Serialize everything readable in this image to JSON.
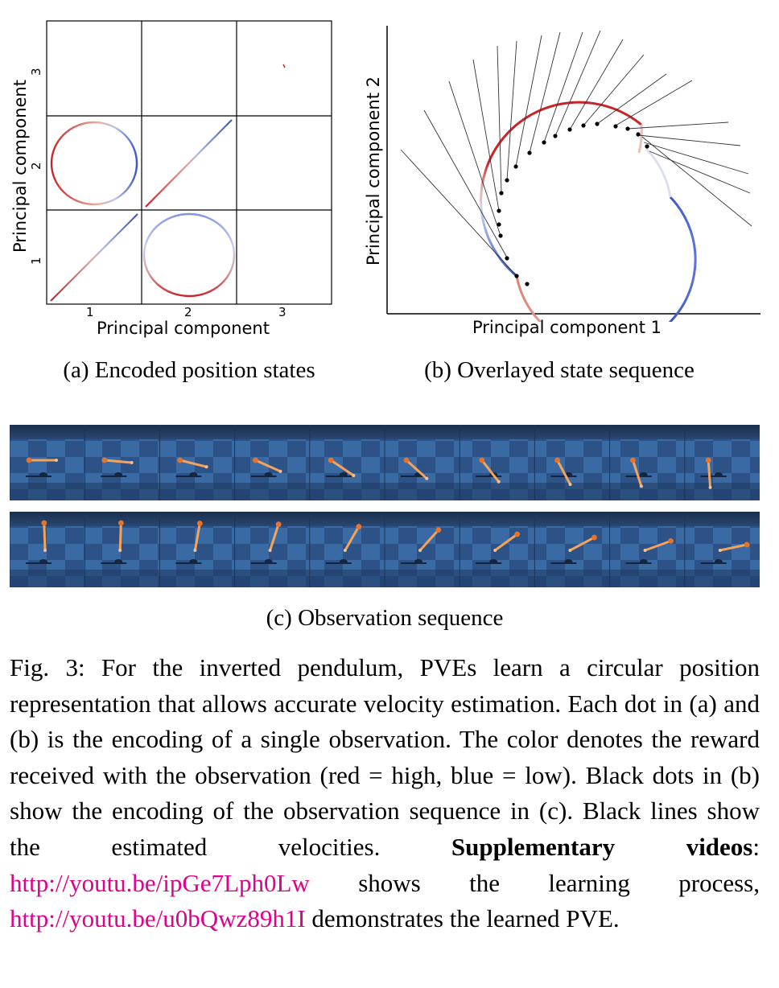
{
  "figure_a": {
    "ylabel": "Principal component",
    "xlabel": "Principal component",
    "xticks": [
      "1",
      "2",
      "3"
    ],
    "yticks": [
      "3",
      "2",
      "1"
    ],
    "subcaption": "(a) Encoded position states"
  },
  "figure_b": {
    "ylabel": "Principal component 2",
    "xlabel": "Principal component 1",
    "subcaption": "(b) Overlayed state sequence"
  },
  "figure_c": {
    "subcaption": "(c) Observation sequence",
    "row1_frames": 10,
    "row2_frames": 10
  },
  "caption": {
    "lead": "Fig. 3: For the inverted pendulum, PVEs learn a circular position representation that allows accurate velocity estimation. Each dot in (a) and (b) is the encoding of a single observation. The color denotes the reward received with the observation (red = high, blue = low). Black dots in (b) show the encoding of the observation sequence in (c). Black lines show the estimated velocities.",
    "bold": "Supplementary videos",
    "colon": ":",
    "link1": "http://youtu.be/ipGe7Lph0Lw",
    "mid": "shows the learning process,",
    "link2": "http://youtu.be/u0bQwz89h1I",
    "tail": "demonstrates the learned PVE."
  },
  "colors": {
    "high_reward": "#c8242a",
    "low_reward": "#3a55c8",
    "link": "#e0008a"
  }
}
